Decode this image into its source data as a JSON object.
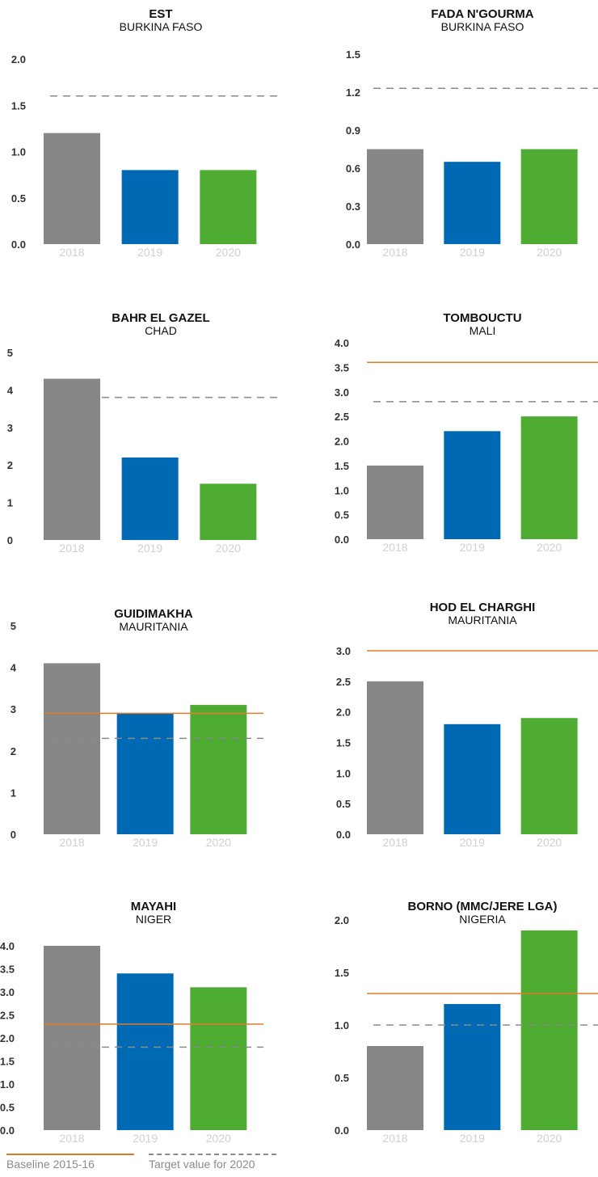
{
  "colors": {
    "bar_2018": "#878787",
    "bar_2019": "#0069b4",
    "bar_2020": "#4fac33",
    "baseline": "#e07b29",
    "target": "#8a8a8a"
  },
  "legend": {
    "baseline_label": "Baseline 2015-16",
    "target_label": "Target value for 2020"
  },
  "chart_data": [
    {
      "type": "bar",
      "title": "EST",
      "subtitle": "BURKINA FASO",
      "categories": [
        "2018",
        "2019",
        "2020"
      ],
      "values": [
        1.2,
        0.8,
        0.8
      ],
      "yticks": [
        "0.0",
        "0.5",
        "1.0",
        "1.5",
        "2.0"
      ],
      "ylim": [
        0,
        2.0
      ],
      "baseline": null,
      "target": 1.6
    },
    {
      "type": "bar",
      "title": "FADA N'GOURMA",
      "subtitle": "BURKINA FASO",
      "categories": [
        "2018",
        "2019",
        "2020"
      ],
      "values": [
        0.75,
        0.65,
        0.75
      ],
      "yticks": [
        "0.0",
        "0.3",
        "0.6",
        "0.9",
        "1.2",
        "1.5"
      ],
      "ylim": [
        0,
        1.5
      ],
      "baseline": null,
      "target": 1.23
    },
    {
      "type": "bar",
      "title": "BAHR EL GAZEL",
      "subtitle": "CHAD",
      "categories": [
        "2018",
        "2019",
        "2020"
      ],
      "values": [
        4.3,
        2.2,
        1.5
      ],
      "yticks": [
        "0",
        "1",
        "2",
        "3",
        "4",
        "5"
      ],
      "ylim": [
        0,
        5
      ],
      "baseline": null,
      "target": 3.8
    },
    {
      "type": "bar",
      "title": "TOMBOUCTU",
      "subtitle": "MALI",
      "categories": [
        "2018",
        "2019",
        "2020"
      ],
      "values": [
        1.5,
        2.2,
        2.5
      ],
      "yticks": [
        "0.0",
        "0.5",
        "1.0",
        "1.5",
        "2.0",
        "2.5",
        "3.0",
        "3.5",
        "4.0"
      ],
      "ylim": [
        0,
        4.0
      ],
      "baseline": 3.6,
      "target": 2.8
    },
    {
      "type": "bar",
      "title": "GUIDIMAKHA",
      "subtitle": "MAURITANIA",
      "categories": [
        "2018",
        "2019",
        "2020"
      ],
      "values": [
        4.1,
        2.9,
        3.1
      ],
      "yticks": [
        "0",
        "1",
        "2",
        "3",
        "4",
        "5"
      ],
      "ylim": [
        0,
        5
      ],
      "baseline": 2.9,
      "target": 2.3
    },
    {
      "type": "bar",
      "title": "HOD EL CHARGHI",
      "subtitle": "MAURITANIA",
      "categories": [
        "2018",
        "2019",
        "2020"
      ],
      "values": [
        2.5,
        1.8,
        1.9
      ],
      "yticks": [
        "0.0",
        "0.5",
        "1.0",
        "1.5",
        "2.0",
        "2.5",
        "3.0"
      ],
      "ylim": [
        0,
        3.0
      ],
      "baseline": 3.0,
      "target": null
    },
    {
      "type": "bar",
      "title": "MAYAHI",
      "subtitle": "NIGER",
      "categories": [
        "2018",
        "2019",
        "2020"
      ],
      "values": [
        4.0,
        3.4,
        3.1
      ],
      "yticks": [
        "0.0",
        "0.5",
        "1.0",
        "1.5",
        "2.0",
        "2.5",
        "3.0",
        "3.5",
        "4.0"
      ],
      "ylim": [
        0,
        4.0
      ],
      "baseline": 2.3,
      "target": 1.8
    },
    {
      "type": "bar",
      "title": "BORNO (MMC/JERE LGA)",
      "subtitle": "NIGERIA",
      "categories": [
        "2018",
        "2019",
        "2020"
      ],
      "values": [
        0.8,
        1.2,
        1.9
      ],
      "yticks": [
        "0.0",
        "0.5",
        "1.0",
        "1.5",
        "2.0"
      ],
      "ylim": [
        0,
        2.0
      ],
      "baseline": 1.3,
      "target": 1.0
    }
  ]
}
